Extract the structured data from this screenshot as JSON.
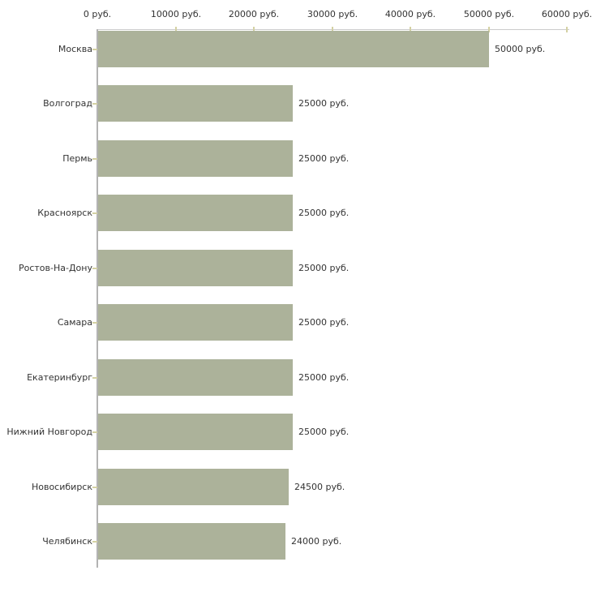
{
  "chart_data": {
    "type": "bar",
    "orientation": "horizontal",
    "title": "",
    "xlabel": "",
    "ylabel": "",
    "unit": "руб.",
    "grid": false,
    "legend": false,
    "xlim": [
      0,
      60000
    ],
    "x_ticks": [
      0,
      10000,
      20000,
      30000,
      40000,
      50000,
      60000
    ],
    "x_tick_labels": [
      "0 руб.",
      "10000 руб.",
      "20000 руб.",
      "30000 руб.",
      "40000 руб.",
      "50000 руб.",
      "60000 руб."
    ],
    "categories": [
      "Москва",
      "Волгоград",
      "Пермь",
      "Красноярск",
      "Ростов-На-Дону",
      "Самара",
      "Екатеринбург",
      "Нижний Новгород",
      "Новосибирск",
      "Челябинск"
    ],
    "values": [
      50000,
      25000,
      25000,
      25000,
      25000,
      25000,
      25000,
      25000,
      24500,
      24000
    ],
    "value_labels": [
      "50000 руб.",
      "25000 руб.",
      "25000 руб.",
      "25000 руб.",
      "25000 руб.",
      "25000 руб.",
      "25000 руб.",
      "25000 руб.",
      "24500 руб.",
      "24000 руб."
    ],
    "colors": {
      "bar": "#acb29a",
      "axis_x_line": "#cccccc",
      "axis_y_line": "#b3b3b3",
      "tick": "#d4d1a3",
      "text": "#333333",
      "background": "#ffffff"
    }
  }
}
